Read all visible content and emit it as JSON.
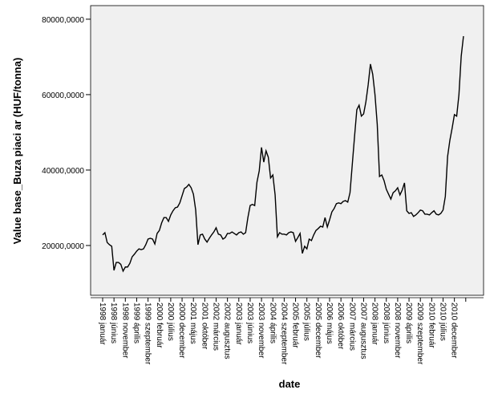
{
  "chart_data": {
    "type": "line",
    "x_label": "date",
    "y_label": "Value base_Buza piaci ar (HUF/tonna)",
    "categories": [
      "1998 január",
      null,
      null,
      null,
      null,
      "1998 június",
      null,
      null,
      null,
      null,
      "1998 november",
      null,
      null,
      null,
      null,
      "1999 április",
      null,
      null,
      null,
      null,
      "1999 szeptember",
      null,
      null,
      null,
      null,
      "2000 február",
      null,
      null,
      null,
      null,
      "2000 július",
      null,
      null,
      null,
      null,
      "2000 december",
      null,
      null,
      null,
      null,
      "2001 május",
      null,
      null,
      null,
      null,
      "2001 október",
      null,
      null,
      null,
      null,
      "2002 március",
      null,
      null,
      null,
      null,
      "2002 augusztus",
      null,
      null,
      null,
      null,
      "2003 január",
      null,
      null,
      null,
      null,
      "2003 június",
      null,
      null,
      null,
      null,
      "2003 november",
      null,
      null,
      null,
      null,
      "2004 április",
      null,
      null,
      null,
      null,
      "2004 szeptember",
      null,
      null,
      null,
      null,
      "2005 február",
      null,
      null,
      null,
      null,
      "2005 július",
      null,
      null,
      null,
      null,
      "2005 december",
      null,
      null,
      null,
      null,
      "2006 május",
      null,
      null,
      null,
      null,
      "2006 október",
      null,
      null,
      null,
      null,
      "2007 március",
      null,
      null,
      null,
      null,
      "2007 augusztus",
      null,
      null,
      null,
      null,
      "2008 január",
      null,
      null,
      null,
      null,
      "2008 június",
      null,
      null,
      null,
      null,
      "2008 november",
      null,
      null,
      null,
      null,
      "2009 április",
      null,
      null,
      null,
      null,
      "2009 szeptember",
      null,
      null,
      null,
      null,
      "2010 február",
      null,
      null,
      null,
      null,
      "2010 július",
      null,
      null,
      null,
      null,
      "2010 december",
      null,
      null,
      null,
      null
    ],
    "series": [
      {
        "color": "#000000",
        "values": [
          22800,
          23400,
          20800,
          20200,
          19800,
          13400,
          15500,
          15500,
          15000,
          13200,
          14300,
          14300,
          15300,
          17000,
          17700,
          18500,
          19100,
          18900,
          19100,
          20200,
          21700,
          21900,
          21700,
          20400,
          23200,
          24000,
          26000,
          27400,
          27400,
          26400,
          28100,
          29200,
          30000,
          30200,
          31300,
          33200,
          35100,
          35500,
          36200,
          35300,
          33600,
          29400,
          20200,
          22800,
          23000,
          21700,
          20900,
          21900,
          22800,
          23600,
          24700,
          23000,
          22800,
          21700,
          22100,
          23200,
          23200,
          23600,
          23200,
          22800,
          23400,
          23600,
          23000,
          23400,
          27400,
          30600,
          30900,
          30600,
          36800,
          39800,
          46000,
          42100,
          45100,
          43400,
          37900,
          38700,
          33400,
          22300,
          23400,
          23000,
          23000,
          22800,
          23400,
          23600,
          23400,
          21100,
          22100,
          23200,
          17900,
          19800,
          19100,
          21700,
          21300,
          22800,
          24000,
          24500,
          25100,
          24900,
          27400,
          24900,
          26800,
          28900,
          29800,
          31100,
          31300,
          31100,
          31700,
          31900,
          31500,
          34000,
          41500,
          48900,
          56000,
          57200,
          54300,
          54900,
          58100,
          62600,
          68100,
          65400,
          60000,
          52100,
          38300,
          38700,
          37200,
          34900,
          33600,
          32300,
          34000,
          34500,
          35300,
          33400,
          34700,
          36600,
          29200,
          28500,
          28700,
          27700,
          28100,
          28700,
          29400,
          29200,
          28300,
          28300,
          28100,
          28700,
          29200,
          28300,
          28100,
          28500,
          29400,
          33000,
          43600,
          47900,
          51100,
          54700,
          54300,
          60000,
          70200,
          75500
        ]
      }
    ],
    "ylim": [
      6800,
      83600
    ],
    "yticks": [
      {
        "value": 20000,
        "label": "20000,0000"
      },
      {
        "value": 40000,
        "label": "40000,0000"
      },
      {
        "value": 60000,
        "label": "60000,0000"
      },
      {
        "value": 80000,
        "label": "80000,0000"
      }
    ],
    "plot_background": "#f0f0f0"
  }
}
